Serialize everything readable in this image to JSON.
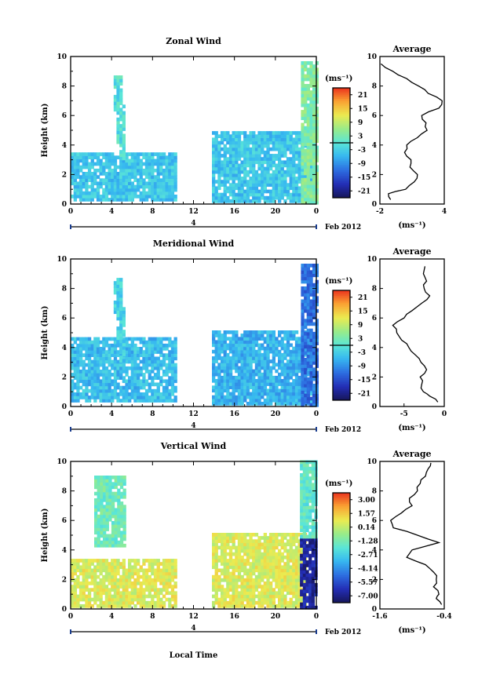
{
  "chart_data": [
    {
      "type": "heatmap",
      "title": "Zonal Wind",
      "ylabel": "Height (km)",
      "xlabel": "",
      "xlim": [
        0,
        24
      ],
      "ylim": [
        0,
        10
      ],
      "x_ticks": [
        "0",
        "4",
        "8",
        "12",
        "16",
        "20",
        "0"
      ],
      "y_ticks": [
        "0",
        "2",
        "4",
        "6",
        "8",
        "10"
      ],
      "date_axis": {
        "label": "4",
        "unit": "Feb 2012"
      },
      "colorbar": {
        "unit": "(ms⁻¹)",
        "range": [
          -24,
          24
        ],
        "ticks": [
          "21",
          "15",
          "9",
          "3",
          "-3",
          "-9",
          "-15",
          "-21"
        ],
        "zero_marker": 0
      },
      "data_regions": [
        {
          "x": [
            0,
            10.2
          ],
          "y": [
            0.2,
            3.3
          ],
          "dominant_value": -4
        },
        {
          "x": [
            4.2,
            5.2
          ],
          "y": [
            3.0,
            8.6
          ],
          "dominant_value": -1
        },
        {
          "x": [
            13.8,
            23.5
          ],
          "y": [
            0.1,
            4.8
          ],
          "dominant_value": -4
        },
        {
          "x": [
            22.5,
            24
          ],
          "y": [
            0,
            9.5
          ],
          "dominant_value": 4
        }
      ],
      "average_profile": {
        "title": "Average",
        "xlabel": "(ms⁻¹)",
        "xlim": [
          -2,
          4
        ],
        "x_ticks": [
          "-2",
          "4"
        ],
        "y_ticks": [
          "0",
          "2",
          "4",
          "6",
          "8",
          "10"
        ],
        "heights": [
          0.3,
          0.7,
          1.0,
          1.5,
          2.0,
          2.5,
          3.0,
          3.5,
          4.0,
          4.5,
          5.0,
          5.5,
          6.0,
          6.5,
          7.0,
          7.5,
          8.0,
          8.5,
          9.0,
          9.5
        ],
        "values": [
          -1.0,
          -1.2,
          0.4,
          1.2,
          1.5,
          0.8,
          0.9,
          0.3,
          0.5,
          1.5,
          2.4,
          2.3,
          1.9,
          3.5,
          3.8,
          2.5,
          1.6,
          0.5,
          -0.8,
          -1.9
        ]
      }
    },
    {
      "type": "heatmap",
      "title": "Meridional Wind",
      "ylabel": "Height (km)",
      "xlabel": "",
      "xlim": [
        0,
        24
      ],
      "ylim": [
        0,
        10
      ],
      "x_ticks": [
        "0",
        "4",
        "8",
        "12",
        "16",
        "20",
        "0"
      ],
      "y_ticks": [
        "0",
        "2",
        "4",
        "6",
        "8",
        "10"
      ],
      "date_axis": {
        "label": "4",
        "unit": "Feb 2012"
      },
      "colorbar": {
        "unit": "(ms⁻¹)",
        "range": [
          -24,
          24
        ],
        "ticks": [
          "21",
          "15",
          "9",
          "3",
          "-3",
          "-9",
          "-15",
          "-21"
        ],
        "zero_marker": 0
      },
      "data_regions": [
        {
          "x": [
            0,
            10.2
          ],
          "y": [
            0.3,
            4.5
          ],
          "dominant_value": -5
        },
        {
          "x": [
            4.2,
            5.2
          ],
          "y": [
            3.0,
            8.6
          ],
          "dominant_value": -3
        },
        {
          "x": [
            13.8,
            23.5
          ],
          "y": [
            0.1,
            5.0
          ],
          "dominant_value": -6
        },
        {
          "x": [
            22.5,
            24
          ],
          "y": [
            0,
            9.5
          ],
          "dominant_value": -12
        }
      ],
      "average_profile": {
        "title": "Average",
        "xlabel": "(ms⁻¹)",
        "xlim": [
          -8,
          0
        ],
        "x_ticks": [
          "-5",
          "0"
        ],
        "y_ticks": [
          "0",
          "2",
          "4",
          "6",
          "8",
          "10"
        ],
        "heights": [
          0.3,
          0.7,
          1.0,
          1.5,
          2.0,
          2.5,
          3.0,
          3.5,
          4.0,
          4.5,
          5.0,
          5.5,
          6.0,
          6.5,
          7.0,
          7.5,
          8.0,
          8.5,
          9.0,
          9.5
        ],
        "values": [
          -0.8,
          -1.8,
          -2.6,
          -2.8,
          -3.0,
          -2.2,
          -2.9,
          -3.6,
          -4.4,
          -5.3,
          -5.9,
          -6.4,
          -5.0,
          -4.0,
          -2.8,
          -1.8,
          -2.5,
          -2.2,
          -2.6,
          -2.4
        ]
      }
    },
    {
      "type": "heatmap",
      "title": "Vertical Wind",
      "ylabel": "Height (km)",
      "xlabel": "Local Time",
      "xlim": [
        0,
        24
      ],
      "ylim": [
        0,
        10
      ],
      "x_ticks": [
        "0",
        "4",
        "8",
        "12",
        "16",
        "20",
        "0"
      ],
      "y_ticks": [
        "0",
        "2",
        "4",
        "6",
        "8",
        "10"
      ],
      "date_axis": {
        "label": "4",
        "unit": "Feb 2012"
      },
      "colorbar": {
        "unit": "(ms⁻¹)",
        "range": [
          -7.5,
          3.5
        ],
        "ticks": [
          "3.00",
          "1.57",
          "0.14",
          "-1.28",
          "-2.71",
          "-4.14",
          "-5.57",
          "-7.00"
        ]
      },
      "data_regions": [
        {
          "x": [
            0,
            10.2
          ],
          "y": [
            0.1,
            3.4
          ],
          "dominant_value": 0.5
        },
        {
          "x": [
            2.3,
            5.3
          ],
          "y": [
            4.2,
            9.0
          ],
          "dominant_value": -1.5
        },
        {
          "x": [
            13.8,
            22.8
          ],
          "y": [
            0.1,
            5.0
          ],
          "dominant_value": 0.5
        },
        {
          "x": [
            22.4,
            24
          ],
          "y": [
            0,
            4.8
          ],
          "dominant_value": -6.5
        },
        {
          "x": [
            22.4,
            24
          ],
          "y": [
            4.8,
            10
          ],
          "dominant_value": -1.8
        }
      ],
      "average_profile": {
        "title": "Average",
        "xlabel": "(ms⁻¹)",
        "xlim": [
          -1.6,
          -0.4
        ],
        "x_ticks": [
          "-1.6",
          "-0.4"
        ],
        "y_ticks": [
          "0",
          "2",
          "4",
          "6",
          "8",
          "10"
        ],
        "heights": [
          0.3,
          0.7,
          1.0,
          1.5,
          2.0,
          2.5,
          3.0,
          3.5,
          4.0,
          4.5,
          5.0,
          5.5,
          6.0,
          6.5,
          7.0,
          7.5,
          8.0,
          8.5,
          9.0,
          9.5,
          9.9
        ],
        "values": [
          -0.45,
          -0.55,
          -0.5,
          -0.6,
          -0.55,
          -0.6,
          -0.75,
          -1.1,
          -1.0,
          -0.5,
          -0.9,
          -1.35,
          -1.4,
          -1.2,
          -1.0,
          -1.05,
          -0.9,
          -0.85,
          -0.75,
          -0.7,
          -0.65
        ]
      }
    }
  ]
}
